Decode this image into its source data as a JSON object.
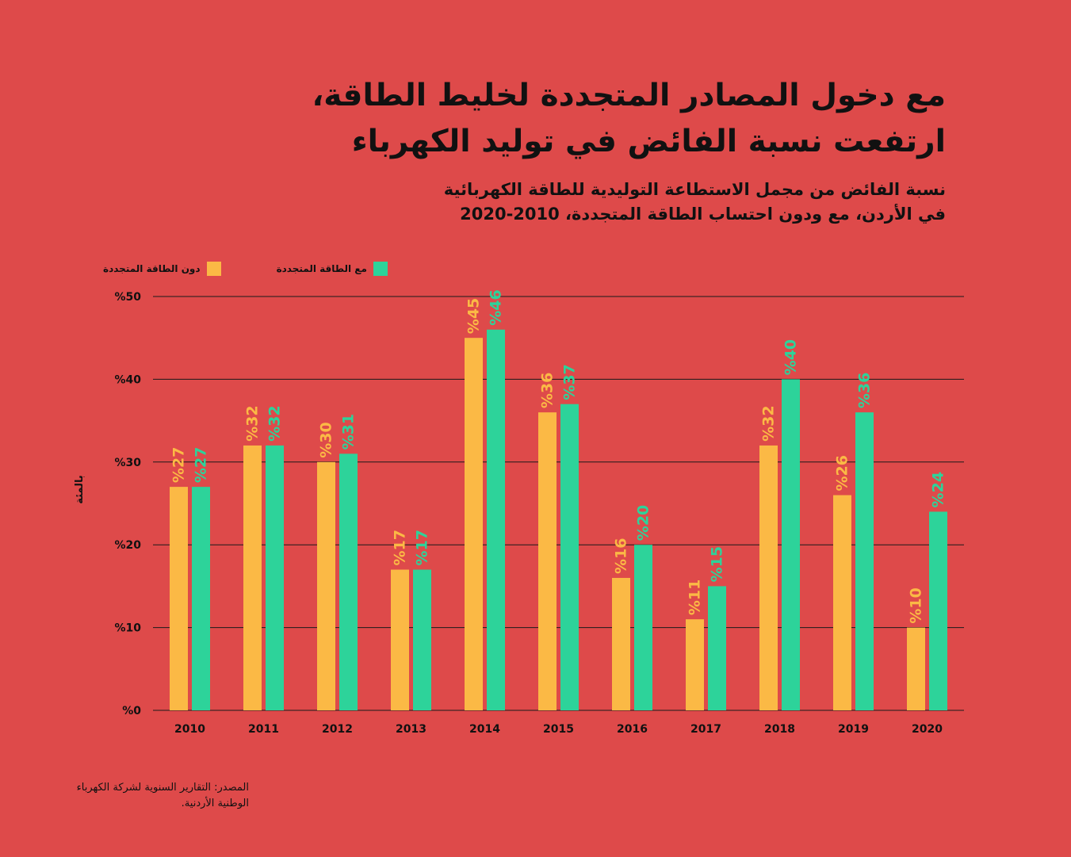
{
  "title_line1": "مع دخول المصادر المتجددة لخليط الطاقة،",
  "title_line2": "ارتفعت نسبة الفائض في توليد الكهرباء",
  "subtitle_line1": "نسبة الفائض من مجمل الاستطاعة التوليدية للطاقة الكهربائية",
  "subtitle_line2": "في الأردن، مع ودون احتساب الطاقة المتجددة، 2010-2020",
  "source_text": "المصدر: التقارير السنوية لشركة الكهرباء الوطنية الأردنية.",
  "colors": {
    "background": "#de4a4a",
    "without_renewable": "#fbb945",
    "with_renewable": "#2dd39a",
    "text": "#111111"
  },
  "chart_data": {
    "type": "bar",
    "ylabel": "بالمئة",
    "ylim": [
      0,
      50
    ],
    "yticks": [
      "%0",
      "%10",
      "%20",
      "%30",
      "%40",
      "%50"
    ],
    "grid": true,
    "legend_position": "top-left",
    "categories": [
      "2010",
      "2011",
      "2012",
      "2013",
      "2014",
      "2015",
      "2016",
      "2017",
      "2018",
      "2019",
      "2020"
    ],
    "series": [
      {
        "name": "دون الطاقة المتجددة",
        "color": "#fbb945",
        "values": [
          27,
          32,
          30,
          17,
          45,
          36,
          16,
          11,
          32,
          26,
          10
        ],
        "labels": [
          "%27",
          "%32",
          "%30",
          "%17",
          "%45",
          "%36",
          "%16",
          "%11",
          "%32",
          "%26",
          "%10"
        ]
      },
      {
        "name": "مع الطاقة المتجددة",
        "color": "#2dd39a",
        "values": [
          27,
          32,
          31,
          17,
          46,
          37,
          20,
          15,
          40,
          36,
          24
        ],
        "labels": [
          "%27",
          "%32",
          "%31",
          "%17",
          "%46",
          "%37",
          "%20",
          "%15",
          "%40",
          "%36",
          "%24"
        ]
      }
    ]
  }
}
